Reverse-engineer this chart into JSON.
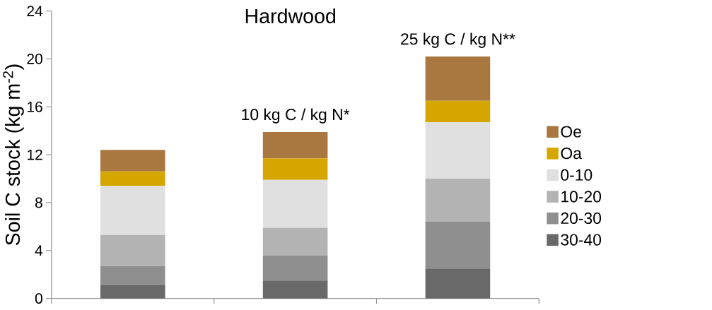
{
  "chart_data": {
    "type": "bar",
    "stacked": true,
    "title": "Hardwood",
    "ylabel": "Soil C stock (kg m$^{-2}$)",
    "categories": [
      null,
      null,
      null
    ],
    "series": [
      {
        "name": "30-40",
        "color": "#696969",
        "values": [
          1.1,
          1.5,
          2.5
        ]
      },
      {
        "name": "20-30",
        "color": "#8f8f8f",
        "values": [
          1.6,
          2.1,
          3.9
        ]
      },
      {
        "name": "10-20",
        "color": "#b3b3b3",
        "values": [
          2.6,
          2.3,
          3.6
        ]
      },
      {
        "name": "0-10",
        "color": "#e0e0e0",
        "values": [
          4.1,
          4.0,
          4.7
        ]
      },
      {
        "name": "Oa",
        "color": "#d6a600",
        "values": [
          1.2,
          1.8,
          1.8
        ]
      },
      {
        "name": "Oe",
        "color": "#a87840",
        "values": [
          1.8,
          2.2,
          3.7
        ]
      }
    ],
    "ylim": [
      0,
      24
    ],
    "yticks": [
      0,
      4,
      8,
      12,
      16,
      20,
      24
    ],
    "annotations": [
      "10 kg C / kg N*",
      "25 kg C / kg N**"
    ],
    "legend": "right",
    "grid": false
  }
}
